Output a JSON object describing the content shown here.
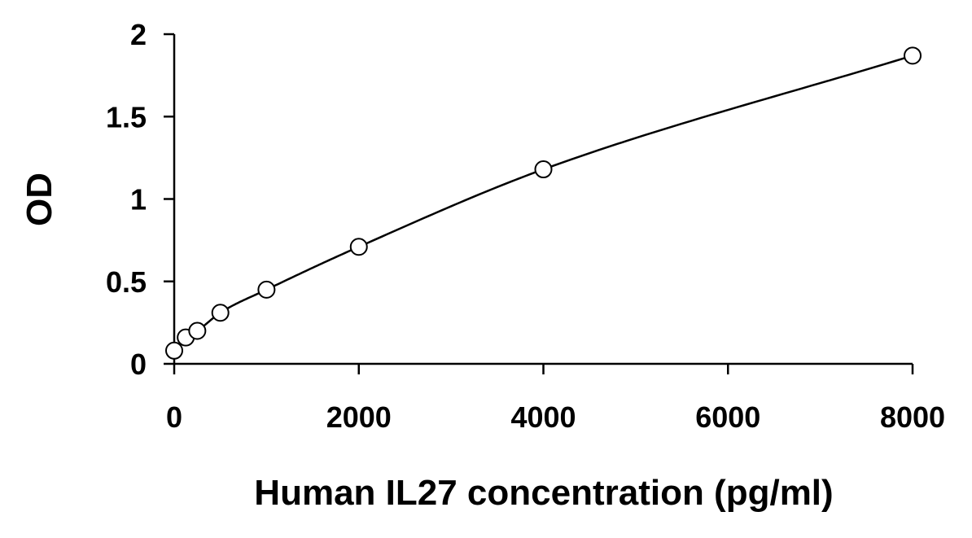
{
  "chart_data": {
    "type": "scatter",
    "title": "",
    "xlabel": "Human IL27 concentration (pg/ml)",
    "ylabel": "OD",
    "xlim": [
      0,
      8000
    ],
    "ylim": [
      0,
      2
    ],
    "x_ticks": [
      0,
      2000,
      4000,
      6000,
      8000
    ],
    "y_ticks": [
      0,
      0.5,
      1,
      1.5,
      2
    ],
    "x_tick_labels": [
      "0",
      "2000",
      "4000",
      "6000",
      "8000"
    ],
    "y_tick_labels": [
      "0",
      "0.5",
      "1",
      "1.5",
      "2"
    ],
    "grid": false,
    "legend": "none",
    "marker": "open-circle",
    "fit_line": true,
    "series": [
      {
        "x": [
          0,
          125,
          250,
          500,
          1000,
          2000,
          4000,
          8000
        ],
        "y": [
          0.08,
          0.16,
          0.2,
          0.31,
          0.45,
          0.71,
          1.18,
          1.87
        ]
      }
    ],
    "colors": {
      "line": "#000000",
      "marker_stroke": "#000000",
      "marker_fill": "#ffffff"
    }
  }
}
